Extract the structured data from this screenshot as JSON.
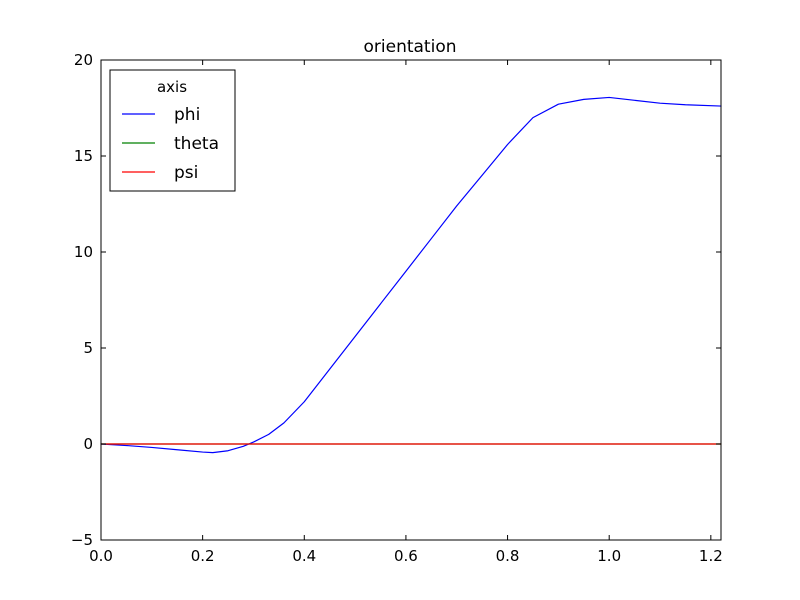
{
  "chart_data": {
    "type": "line",
    "title": "orientation",
    "xlabel": "",
    "ylabel": "",
    "xlim": [
      0.0,
      1.22
    ],
    "ylim": [
      -5,
      20
    ],
    "x_ticks": [
      "0.0",
      "0.2",
      "0.4",
      "0.6",
      "0.8",
      "1.0",
      "1.2"
    ],
    "y_ticks": [
      "20",
      "15",
      "10",
      "5",
      "0",
      "−5"
    ],
    "legend": {
      "title": "axis",
      "placement": "upper-left"
    },
    "series": [
      {
        "name": "phi",
        "color": "#0000ff",
        "x": [
          0.0,
          0.05,
          0.1,
          0.15,
          0.2,
          0.22,
          0.25,
          0.28,
          0.3,
          0.33,
          0.36,
          0.4,
          0.45,
          0.5,
          0.55,
          0.6,
          0.65,
          0.7,
          0.75,
          0.8,
          0.85,
          0.9,
          0.95,
          1.0,
          1.05,
          1.1,
          1.15,
          1.22
        ],
        "y": [
          0.0,
          -0.08,
          -0.18,
          -0.3,
          -0.42,
          -0.45,
          -0.35,
          -0.12,
          0.1,
          0.5,
          1.1,
          2.2,
          3.9,
          5.6,
          7.3,
          9.0,
          10.7,
          12.4,
          14.0,
          15.6,
          17.0,
          17.7,
          17.95,
          18.05,
          17.9,
          17.75,
          17.67,
          17.6
        ]
      },
      {
        "name": "theta",
        "color": "#008000",
        "x": [
          0.0,
          1.22
        ],
        "y": [
          0.0,
          0.0
        ]
      },
      {
        "name": "psi",
        "color": "#ff0000",
        "x": [
          0.0,
          1.22
        ],
        "y": [
          0.0,
          0.0
        ]
      }
    ]
  }
}
